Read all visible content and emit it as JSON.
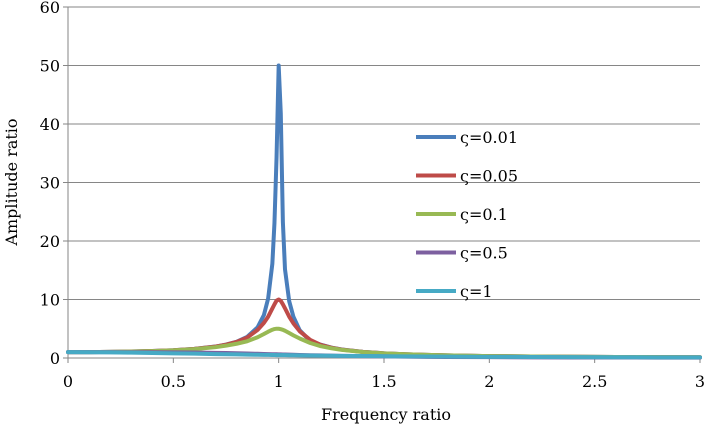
{
  "chart_data": {
    "type": "line",
    "title": "",
    "xlabel": "Frequency ratio",
    "ylabel": "Amplitude ratio",
    "xlim": [
      0,
      3
    ],
    "ylim": [
      0,
      60
    ],
    "x_ticks": [
      "0",
      "0.5",
      "1",
      "1.5",
      "2",
      "2.5",
      "3"
    ],
    "y_ticks": [
      "0",
      "10",
      "20",
      "30",
      "40",
      "50",
      "60"
    ],
    "grid": "horizontal",
    "legend_position": "center-right",
    "x": [
      0,
      0.1,
      0.2,
      0.3,
      0.4,
      0.5,
      0.6,
      0.7,
      0.75,
      0.8,
      0.85,
      0.9,
      0.93,
      0.95,
      0.97,
      0.98,
      0.99,
      1.0,
      1.01,
      1.02,
      1.03,
      1.05,
      1.07,
      1.1,
      1.15,
      1.2,
      1.25,
      1.3,
      1.4,
      1.5,
      1.6,
      1.7,
      1.8,
      2.0,
      2.2,
      2.4,
      2.6,
      2.8,
      3.0
    ],
    "series": [
      {
        "name": "ς=0.01",
        "color": "#4a7ebb",
        "values": [
          1.0,
          1.01,
          1.04,
          1.1,
          1.19,
          1.33,
          1.56,
          1.96,
          2.29,
          2.77,
          3.6,
          5.25,
          7.35,
          10.16,
          16.12,
          23.06,
          34.36,
          50.0,
          41.87,
          23.24,
          15.18,
          9.71,
          7.05,
          4.73,
          2.9,
          2.27,
          1.78,
          1.45,
          1.04,
          0.8,
          0.64,
          0.53,
          0.45,
          0.33,
          0.26,
          0.21,
          0.17,
          0.15,
          0.125
        ]
      },
      {
        "name": "ς=0.05",
        "color": "#be4b48",
        "values": [
          1.0,
          1.01,
          1.04,
          1.1,
          1.19,
          1.33,
          1.56,
          1.95,
          2.28,
          2.74,
          3.48,
          4.8,
          6.0,
          7.06,
          8.47,
          9.17,
          9.81,
          10.0,
          9.78,
          9.18,
          8.5,
          7.07,
          5.92,
          4.57,
          3.1,
          2.24,
          1.76,
          1.44,
          1.04,
          0.8,
          0.64,
          0.53,
          0.45,
          0.33,
          0.26,
          0.21,
          0.17,
          0.15,
          0.125
        ]
      },
      {
        "name": "ς=0.1",
        "color": "#98b954",
        "values": [
          1.0,
          1.01,
          1.04,
          1.09,
          1.18,
          1.31,
          1.51,
          1.85,
          2.11,
          2.43,
          2.86,
          3.55,
          4.1,
          4.49,
          4.83,
          4.95,
          5.01,
          5.0,
          4.93,
          4.82,
          4.66,
          4.27,
          3.87,
          3.33,
          2.56,
          2.02,
          1.67,
          1.39,
          1.02,
          0.79,
          0.64,
          0.53,
          0.45,
          0.33,
          0.26,
          0.21,
          0.17,
          0.15,
          0.125
        ]
      },
      {
        "name": "ς=0.5",
        "color": "#7d60a0",
        "values": [
          1.0,
          1.0,
          1.0,
          0.99,
          0.98,
          0.96,
          0.93,
          0.88,
          0.85,
          0.81,
          0.77,
          0.72,
          0.69,
          0.67,
          0.65,
          0.64,
          0.63,
          0.62,
          0.61,
          0.6,
          0.59,
          0.57,
          0.55,
          0.52,
          0.48,
          0.44,
          0.4,
          0.37,
          0.32,
          0.27,
          0.23,
          0.2,
          0.18,
          0.14,
          0.11,
          0.09,
          0.08,
          0.07,
          0.06
        ]
      },
      {
        "name": "ς=1",
        "color": "#46aac5",
        "values": [
          1.0,
          0.99,
          0.96,
          0.92,
          0.86,
          0.8,
          0.74,
          0.67,
          0.64,
          0.61,
          0.58,
          0.55,
          0.54,
          0.53,
          0.52,
          0.51,
          0.5,
          0.5,
          0.5,
          0.49,
          0.49,
          0.48,
          0.47,
          0.45,
          0.43,
          0.41,
          0.39,
          0.37,
          0.34,
          0.31,
          0.28,
          0.26,
          0.24,
          0.2,
          0.17,
          0.15,
          0.13,
          0.11,
          0.1
        ]
      }
    ]
  }
}
